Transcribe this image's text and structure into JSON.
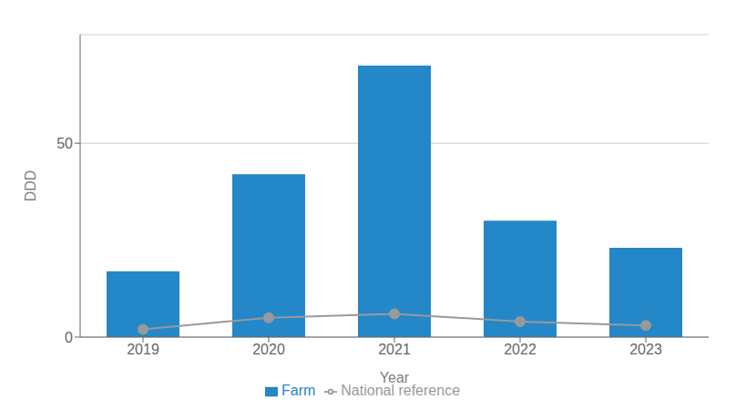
{
  "chart_data": {
    "type": "bar",
    "xlabel": "Year",
    "ylabel": "DDD",
    "categories": [
      "2019",
      "2020",
      "2021",
      "2022",
      "2023"
    ],
    "series": [
      {
        "name": "Farm",
        "type": "bar",
        "color": "#2387C8",
        "values": [
          17,
          42,
          70,
          30,
          23
        ]
      },
      {
        "name": "National reference",
        "type": "line",
        "color": "#999999",
        "marker": "circle",
        "values": [
          2,
          5,
          6,
          4,
          3
        ]
      }
    ],
    "ylim": [
      0,
      78
    ],
    "yticks": [
      0,
      50
    ],
    "grid": true,
    "legend": "bottom"
  }
}
